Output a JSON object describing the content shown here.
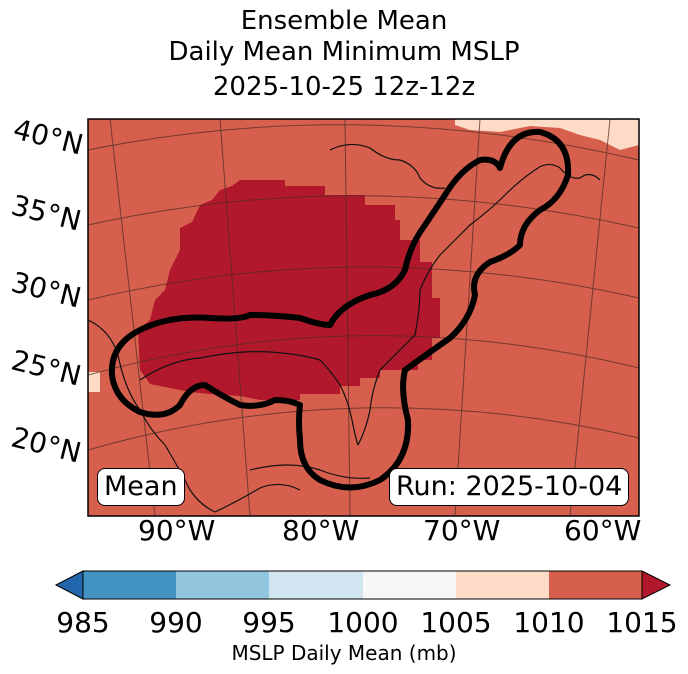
{
  "title": {
    "line1": "Ensemble Mean",
    "line2": "Daily Mean Minimum MSLP",
    "line3": "2025-10-25 12z-12z"
  },
  "latitudes": [
    "40°N",
    "35°N",
    "30°N",
    "25°N",
    "20°N"
  ],
  "longitudes": [
    "90°W",
    "80°W",
    "70°W",
    "60°W"
  ],
  "labels": {
    "mean": "Mean",
    "run": "Run: 2025-10-04"
  },
  "colorbar": {
    "ticks": [
      "985",
      "990",
      "995",
      "1000",
      "1005",
      "1010",
      "1015"
    ],
    "label": "MSLP Daily Mean (mb)",
    "colors": [
      "#2166ac",
      "#4393c3",
      "#92c5de",
      "#d1e5f0",
      "#f7f7f7",
      "#fddbc7",
      "#d6604d",
      "#b2182b"
    ]
  },
  "map_colors": {
    "background": "#d6604d",
    "low": "#b2182b",
    "high": "#fddbc7"
  }
}
